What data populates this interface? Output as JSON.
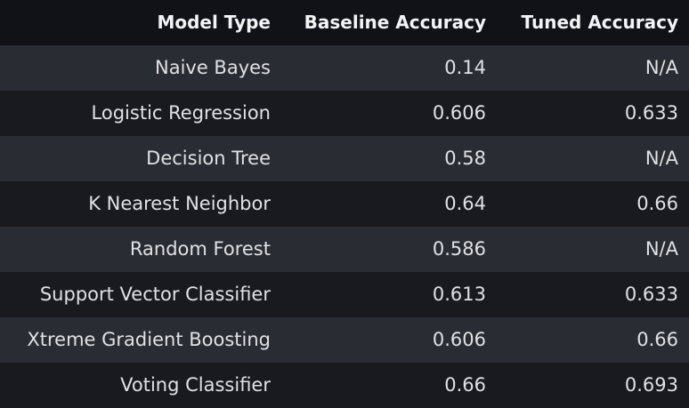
{
  "chart_data": {
    "type": "table",
    "columns": [
      "Model Type",
      "Baseline Accuracy",
      "Tuned Accuracy"
    ],
    "rows": [
      [
        "Naive Bayes",
        "0.14",
        "N/A"
      ],
      [
        "Logistic Regression",
        "0.606",
        "0.633"
      ],
      [
        "Decision Tree",
        "0.58",
        "N/A"
      ],
      [
        "K Nearest Neighbor",
        "0.64",
        "0.66"
      ],
      [
        "Random Forest",
        "0.586",
        "N/A"
      ],
      [
        "Support Vector Classifier",
        "0.613",
        "0.633"
      ],
      [
        "Xtreme Gradient Boosting",
        "0.606",
        "0.66"
      ],
      [
        "Voting Classifier",
        "0.66",
        "0.693"
      ]
    ]
  },
  "colors": {
    "background": "#111217",
    "row_odd": "#2a2c33",
    "row_even": "#181a1f",
    "text": "#e6e7ea"
  }
}
